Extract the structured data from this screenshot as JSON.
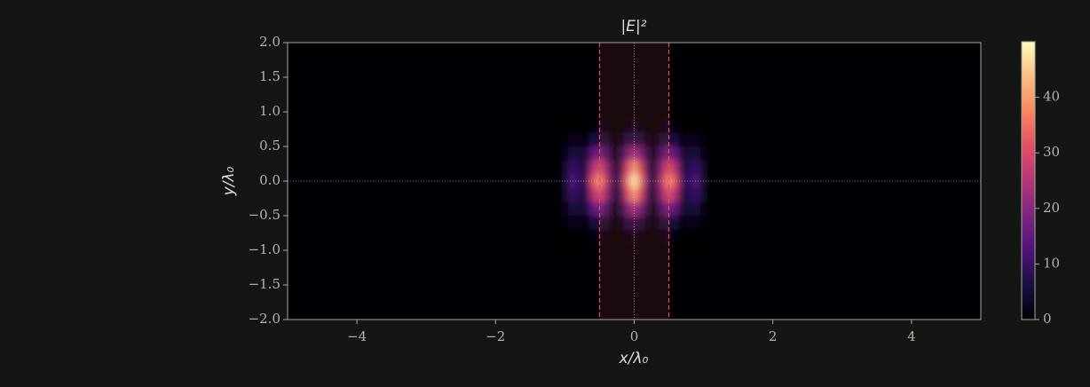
{
  "chart_data": {
    "type": "heatmap",
    "title": "|E|²",
    "xlabel": "x/λ₀",
    "ylabel": "y/λ₀",
    "colormap": "magma",
    "clim": [
      0,
      50
    ],
    "x": [
      -1.0,
      -0.9,
      -0.8,
      -0.7,
      -0.6,
      -0.5,
      -0.4,
      -0.3,
      -0.2,
      -0.1,
      0.0,
      0.1,
      0.2,
      0.3,
      0.4,
      0.5,
      0.6,
      0.7,
      0.8,
      0.9,
      1.0
    ],
    "y": [
      0.8,
      0.6,
      0.4,
      0.2,
      0.0,
      -0.2,
      -0.4,
      -0.6,
      -0.8
    ],
    "z": [
      [
        0,
        0,
        0,
        0,
        1,
        2,
        1,
        0,
        0,
        1,
        2,
        1,
        0,
        0,
        1,
        2,
        1,
        0,
        0,
        0,
        0
      ],
      [
        1,
        2,
        2,
        1,
        5,
        6,
        4,
        1,
        2,
        5,
        8,
        5,
        2,
        1,
        4,
        6,
        5,
        1,
        2,
        2,
        1
      ],
      [
        2,
        5,
        5,
        4,
        14,
        17,
        11,
        2,
        5,
        16,
        23,
        16,
        5,
        2,
        11,
        17,
        14,
        4,
        5,
        5,
        2
      ],
      [
        3,
        10,
        8,
        6,
        24,
        30,
        20,
        4,
        8,
        28,
        40,
        28,
        8,
        4,
        20,
        30,
        24,
        6,
        8,
        10,
        3
      ],
      [
        4,
        12,
        10,
        8,
        30,
        38,
        25,
        5,
        10,
        35,
        50,
        35,
        10,
        5,
        25,
        38,
        30,
        8,
        10,
        12,
        4
      ],
      [
        3,
        10,
        8,
        6,
        24,
        30,
        20,
        4,
        8,
        28,
        40,
        28,
        8,
        4,
        20,
        30,
        24,
        6,
        8,
        10,
        3
      ],
      [
        2,
        5,
        5,
        4,
        14,
        17,
        11,
        2,
        5,
        16,
        23,
        16,
        5,
        2,
        11,
        17,
        14,
        4,
        5,
        5,
        2
      ],
      [
        1,
        2,
        2,
        1,
        5,
        6,
        4,
        1,
        2,
        5,
        8,
        5,
        2,
        1,
        4,
        6,
        5,
        1,
        2,
        2,
        1
      ],
      [
        0,
        0,
        0,
        0,
        1,
        2,
        1,
        0,
        0,
        1,
        2,
        1,
        0,
        0,
        1,
        2,
        1,
        0,
        0,
        0,
        0
      ]
    ],
    "region": {
      "xlim": [
        -0.5,
        0.5
      ],
      "color": "#e05050"
    },
    "vlines": [
      0
    ],
    "hlines": [
      0
    ],
    "xlim": [
      -5,
      5
    ],
    "ylim": [
      -2,
      2
    ],
    "xticks": [
      {
        "value": -4,
        "label": "−4"
      },
      {
        "value": -2,
        "label": "−2"
      },
      0,
      2,
      4
    ],
    "yticks": [
      {
        "value": 2,
        "label": "2.0"
      },
      {
        "value": 1.5,
        "label": "1.5"
      },
      {
        "value": 1,
        "label": "1.0"
      },
      {
        "value": 0.5,
        "label": "0.5"
      },
      {
        "value": 0,
        "label": "0.0"
      },
      {
        "value": -0.5,
        "label": "−0.5"
      },
      {
        "value": -1,
        "label": "−1.0"
      },
      {
        "value": -1.5,
        "label": "−1.5"
      },
      {
        "value": -2,
        "label": "−2.0"
      }
    ],
    "cticks": [
      0,
      10,
      20,
      30,
      40
    ]
  }
}
